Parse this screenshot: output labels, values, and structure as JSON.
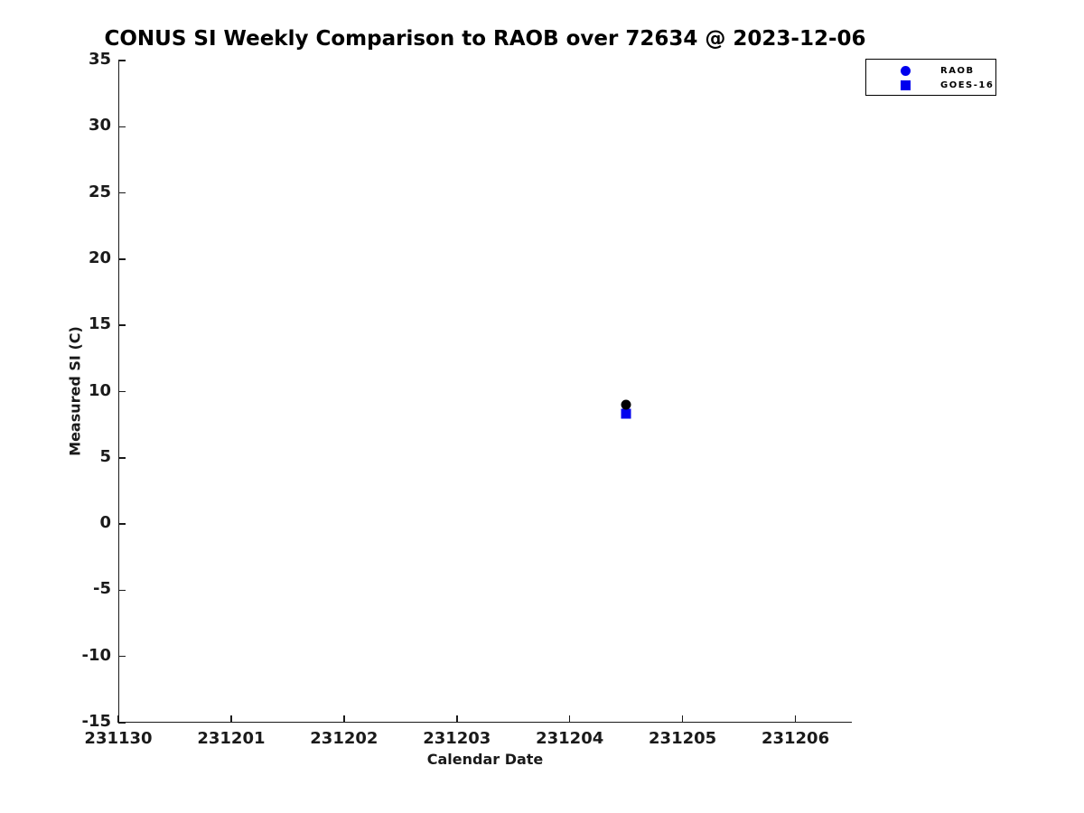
{
  "title": "CONUS SI Weekly Comparison to RAOB over 72634 @ 2023-12-06",
  "colors": {
    "background": "#ffffff",
    "axis_line": "#1a1a1a",
    "axis_text": "#1a1a1a",
    "title_text": "#000000",
    "blue_marker": "#0000ee",
    "black_marker": "#000000"
  },
  "chart_data": {
    "type": "scatter",
    "title": "CONUS SI Weekly Comparison to RAOB over 72634 @ 2023-12-06",
    "xlabel": "Calendar Date",
    "ylabel": "Measured SI (C)",
    "x_tick_labels": [
      "231130",
      "231201",
      "231202",
      "231203",
      "231204",
      "231205",
      "231206"
    ],
    "x_axis_range_days": [
      0,
      6.5
    ],
    "y_ticks": [
      35,
      30,
      25,
      20,
      15,
      10,
      5,
      0,
      -5,
      -10,
      -15
    ],
    "ylim": [
      -15,
      35
    ],
    "grid": false,
    "legend": {
      "position": "top-right",
      "entries": [
        "RAOB",
        "GOES-16"
      ]
    },
    "series": [
      {
        "name": "RAOB",
        "marker": "circle",
        "legend_marker_color": "#0000ee",
        "point_color": "#000000",
        "points": [
          {
            "date": "231204.5",
            "day_offset": 4.5,
            "value": 9.0
          }
        ]
      },
      {
        "name": "GOES-16",
        "marker": "square",
        "legend_marker_color": "#0000ee",
        "point_color": "#0000ee",
        "points": [
          {
            "date": "231204.5",
            "day_offset": 4.5,
            "value": 8.3
          }
        ]
      }
    ]
  }
}
